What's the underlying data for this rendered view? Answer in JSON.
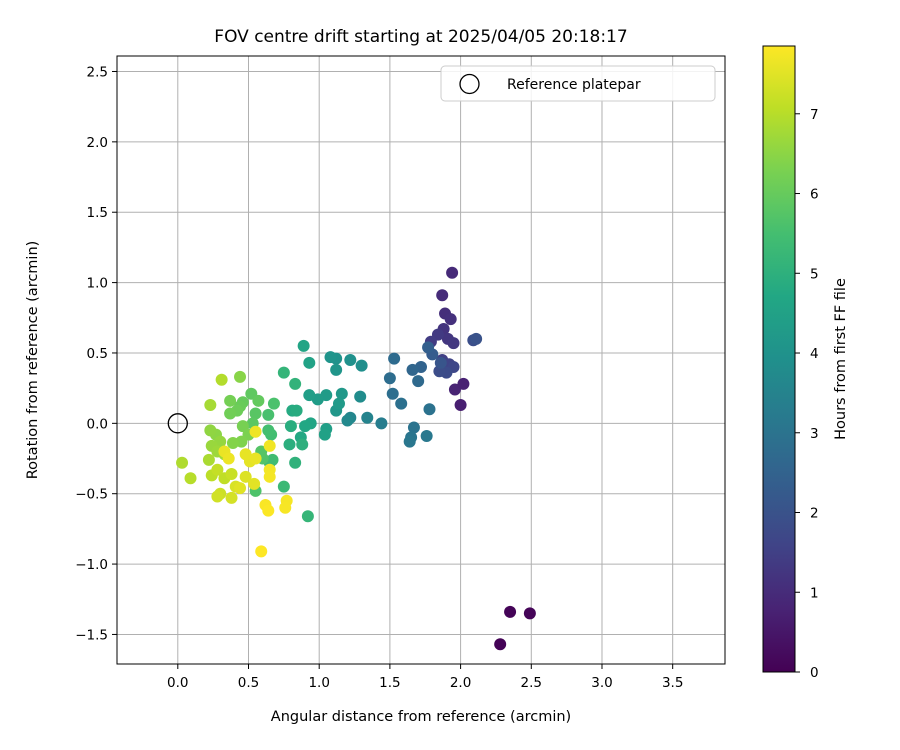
{
  "chart_data": {
    "type": "scatter",
    "title": "FOV centre drift starting at 2025/04/05 20:18:17",
    "xlabel": "Angular distance from reference (arcmin)",
    "ylabel": "Rotation from reference (arcmin)",
    "xlim": [
      -0.43,
      3.87
    ],
    "ylim": [
      -1.71,
      2.61
    ],
    "x_ticks": [
      0.0,
      0.5,
      1.0,
      1.5,
      2.0,
      2.5,
      3.0,
      3.5
    ],
    "x_tick_labels": [
      "0.0",
      "0.5",
      "1.0",
      "1.5",
      "2.0",
      "2.5",
      "3.0",
      "3.5"
    ],
    "y_ticks": [
      -1.5,
      -1.0,
      -0.5,
      0.0,
      0.5,
      1.0,
      1.5,
      2.0,
      2.5
    ],
    "y_tick_labels": [
      "−1.5",
      "−1.0",
      "−0.5",
      "0.0",
      "0.5",
      "1.0",
      "1.5",
      "2.0",
      "2.5"
    ],
    "grid": true,
    "legend": {
      "position": "top-right",
      "entries": [
        "Reference platepar"
      ]
    },
    "reference": {
      "name": "Reference platepar",
      "x": 0.0,
      "y": 0.0
    },
    "colorbar": {
      "label": "Hours from first FF file",
      "min": 0,
      "max": 7.85,
      "colormap": "viridis",
      "ticks": [
        0,
        1,
        2,
        3,
        4,
        5,
        6,
        7
      ],
      "tick_labels": [
        "0",
        "1",
        "2",
        "3",
        "4",
        "5",
        "6",
        "7"
      ]
    },
    "points": [
      {
        "x": 2.28,
        "y": -1.57,
        "t": 0.05
      },
      {
        "x": 2.35,
        "y": -1.34,
        "t": 0.08
      },
      {
        "x": 2.49,
        "y": -1.35,
        "t": 0.1
      },
      {
        "x": 2.0,
        "y": 0.13,
        "t": 0.7
      },
      {
        "x": 1.96,
        "y": 0.24,
        "t": 0.8
      },
      {
        "x": 2.02,
        "y": 0.28,
        "t": 0.75
      },
      {
        "x": 1.94,
        "y": 1.07,
        "t": 0.95
      },
      {
        "x": 1.87,
        "y": 0.91,
        "t": 1.0
      },
      {
        "x": 1.89,
        "y": 0.78,
        "t": 1.05
      },
      {
        "x": 1.93,
        "y": 0.74,
        "t": 1.1
      },
      {
        "x": 1.88,
        "y": 0.67,
        "t": 1.2
      },
      {
        "x": 1.91,
        "y": 0.6,
        "t": 1.25
      },
      {
        "x": 1.95,
        "y": 0.57,
        "t": 1.3
      },
      {
        "x": 1.84,
        "y": 0.63,
        "t": 1.35
      },
      {
        "x": 1.79,
        "y": 0.58,
        "t": 1.4
      },
      {
        "x": 1.87,
        "y": 0.45,
        "t": 1.5
      },
      {
        "x": 1.92,
        "y": 0.42,
        "t": 1.6
      },
      {
        "x": 1.95,
        "y": 0.4,
        "t": 1.7
      },
      {
        "x": 1.9,
        "y": 0.36,
        "t": 1.8
      },
      {
        "x": 1.85,
        "y": 0.37,
        "t": 1.85
      },
      {
        "x": 2.09,
        "y": 0.59,
        "t": 1.9
      },
      {
        "x": 2.11,
        "y": 0.6,
        "t": 2.0
      },
      {
        "x": 1.86,
        "y": 0.43,
        "t": 2.1
      },
      {
        "x": 1.8,
        "y": 0.49,
        "t": 2.3
      },
      {
        "x": 1.77,
        "y": 0.54,
        "t": 2.4
      },
      {
        "x": 1.72,
        "y": 0.4,
        "t": 2.5
      },
      {
        "x": 1.66,
        "y": 0.38,
        "t": 2.6
      },
      {
        "x": 1.7,
        "y": 0.3,
        "t": 2.7
      },
      {
        "x": 1.53,
        "y": 0.46,
        "t": 2.75
      },
      {
        "x": 1.5,
        "y": 0.32,
        "t": 2.8
      },
      {
        "x": 1.52,
        "y": 0.21,
        "t": 2.85
      },
      {
        "x": 1.58,
        "y": 0.14,
        "t": 2.9
      },
      {
        "x": 1.78,
        "y": 0.1,
        "t": 2.95
      },
      {
        "x": 1.67,
        "y": -0.03,
        "t": 3.0
      },
      {
        "x": 1.65,
        "y": -0.1,
        "t": 3.05
      },
      {
        "x": 1.64,
        "y": -0.13,
        "t": 3.1
      },
      {
        "x": 1.76,
        "y": -0.09,
        "t": 3.15
      },
      {
        "x": 1.44,
        "y": 0.0,
        "t": 3.3
      },
      {
        "x": 1.34,
        "y": 0.04,
        "t": 3.5
      },
      {
        "x": 1.22,
        "y": 0.04,
        "t": 3.6
      },
      {
        "x": 1.2,
        "y": 0.02,
        "t": 3.7
      },
      {
        "x": 1.29,
        "y": 0.19,
        "t": 3.8
      },
      {
        "x": 1.3,
        "y": 0.41,
        "t": 3.9
      },
      {
        "x": 1.22,
        "y": 0.45,
        "t": 3.95
      },
      {
        "x": 1.12,
        "y": 0.46,
        "t": 4.0
      },
      {
        "x": 1.08,
        "y": 0.47,
        "t": 4.05
      },
      {
        "x": 1.12,
        "y": 0.38,
        "t": 4.1
      },
      {
        "x": 1.12,
        "y": 0.09,
        "t": 4.15
      },
      {
        "x": 1.16,
        "y": 0.21,
        "t": 4.2
      },
      {
        "x": 1.14,
        "y": 0.14,
        "t": 4.25
      },
      {
        "x": 1.05,
        "y": 0.2,
        "t": 4.3
      },
      {
        "x": 0.99,
        "y": 0.17,
        "t": 4.35
      },
      {
        "x": 0.93,
        "y": 0.2,
        "t": 4.4
      },
      {
        "x": 1.05,
        "y": -0.04,
        "t": 4.45
      },
      {
        "x": 1.04,
        "y": -0.08,
        "t": 4.5
      },
      {
        "x": 0.93,
        "y": 0.43,
        "t": 4.55
      },
      {
        "x": 0.89,
        "y": 0.55,
        "t": 4.6
      },
      {
        "x": 0.94,
        "y": 0.0,
        "t": 4.65
      },
      {
        "x": 0.9,
        "y": -0.02,
        "t": 4.7
      },
      {
        "x": 0.87,
        "y": -0.1,
        "t": 4.75
      },
      {
        "x": 0.81,
        "y": 0.09,
        "t": 4.8
      },
      {
        "x": 0.84,
        "y": 0.09,
        "t": 4.85
      },
      {
        "x": 0.8,
        "y": -0.02,
        "t": 4.9
      },
      {
        "x": 0.79,
        "y": -0.15,
        "t": 4.95
      },
      {
        "x": 0.88,
        "y": -0.15,
        "t": 5.0
      },
      {
        "x": 0.83,
        "y": -0.28,
        "t": 5.05
      },
      {
        "x": 0.83,
        "y": 0.28,
        "t": 5.1
      },
      {
        "x": 0.75,
        "y": 0.36,
        "t": 5.15
      },
      {
        "x": 0.92,
        "y": -0.66,
        "t": 5.2
      },
      {
        "x": 0.75,
        "y": -0.45,
        "t": 5.3
      },
      {
        "x": 0.65,
        "y": -0.28,
        "t": 5.35
      },
      {
        "x": 0.67,
        "y": -0.26,
        "t": 5.4
      },
      {
        "x": 0.66,
        "y": -0.08,
        "t": 5.45
      },
      {
        "x": 0.64,
        "y": -0.05,
        "t": 5.5
      },
      {
        "x": 0.64,
        "y": 0.06,
        "t": 5.55
      },
      {
        "x": 0.68,
        "y": 0.14,
        "t": 5.6
      },
      {
        "x": 0.55,
        "y": -0.48,
        "t": 5.65
      },
      {
        "x": 0.6,
        "y": -0.25,
        "t": 5.7
      },
      {
        "x": 0.59,
        "y": -0.2,
        "t": 5.75
      },
      {
        "x": 0.55,
        "y": 0.07,
        "t": 5.8
      },
      {
        "x": 0.53,
        "y": 0.0,
        "t": 5.85
      },
      {
        "x": 0.52,
        "y": 0.21,
        "t": 5.9
      },
      {
        "x": 0.57,
        "y": 0.16,
        "t": 5.95
      },
      {
        "x": 0.46,
        "y": 0.15,
        "t": 6.0
      },
      {
        "x": 0.44,
        "y": 0.12,
        "t": 6.05
      },
      {
        "x": 0.42,
        "y": 0.09,
        "t": 6.1
      },
      {
        "x": 0.37,
        "y": 0.07,
        "t": 6.15
      },
      {
        "x": 0.37,
        "y": 0.16,
        "t": 6.2
      },
      {
        "x": 0.46,
        "y": -0.02,
        "t": 6.25
      },
      {
        "x": 0.5,
        "y": -0.08,
        "t": 6.3
      },
      {
        "x": 0.45,
        "y": -0.13,
        "t": 6.35
      },
      {
        "x": 0.39,
        "y": -0.14,
        "t": 6.4
      },
      {
        "x": 0.44,
        "y": 0.33,
        "t": 6.45
      },
      {
        "x": 0.27,
        "y": -0.08,
        "t": 6.5
      },
      {
        "x": 0.23,
        "y": -0.05,
        "t": 6.55
      },
      {
        "x": 0.3,
        "y": -0.13,
        "t": 6.6
      },
      {
        "x": 0.24,
        "y": -0.16,
        "t": 6.65
      },
      {
        "x": 0.28,
        "y": -0.2,
        "t": 6.7
      },
      {
        "x": 0.33,
        "y": -0.22,
        "t": 6.75
      },
      {
        "x": 0.23,
        "y": 0.13,
        "t": 6.8
      },
      {
        "x": 0.22,
        "y": -0.26,
        "t": 6.85
      },
      {
        "x": 0.03,
        "y": -0.28,
        "t": 6.9
      },
      {
        "x": 0.31,
        "y": 0.31,
        "t": 6.95
      },
      {
        "x": 0.09,
        "y": -0.39,
        "t": 7.0
      },
      {
        "x": 0.24,
        "y": -0.37,
        "t": 7.05
      },
      {
        "x": 0.33,
        "y": -0.39,
        "t": 7.1
      },
      {
        "x": 0.28,
        "y": -0.33,
        "t": 7.15
      },
      {
        "x": 0.38,
        "y": -0.36,
        "t": 7.2
      },
      {
        "x": 0.3,
        "y": -0.5,
        "t": 7.25
      },
      {
        "x": 0.28,
        "y": -0.52,
        "t": 7.3
      },
      {
        "x": 0.38,
        "y": -0.53,
        "t": 7.35
      },
      {
        "x": 0.41,
        "y": -0.45,
        "t": 7.4
      },
      {
        "x": 0.48,
        "y": -0.38,
        "t": 7.45
      },
      {
        "x": 0.44,
        "y": -0.46,
        "t": 7.5
      },
      {
        "x": 0.54,
        "y": -0.43,
        "t": 7.52
      },
      {
        "x": 0.51,
        "y": -0.27,
        "t": 7.55
      },
      {
        "x": 0.48,
        "y": -0.22,
        "t": 7.58
      },
      {
        "x": 0.55,
        "y": -0.25,
        "t": 7.6
      },
      {
        "x": 0.33,
        "y": -0.2,
        "t": 7.62
      },
      {
        "x": 0.36,
        "y": -0.25,
        "t": 7.65
      },
      {
        "x": 0.55,
        "y": -0.06,
        "t": 7.68
      },
      {
        "x": 0.65,
        "y": -0.16,
        "t": 7.7
      },
      {
        "x": 0.65,
        "y": -0.33,
        "t": 7.72
      },
      {
        "x": 0.65,
        "y": -0.38,
        "t": 7.74
      },
      {
        "x": 0.77,
        "y": -0.55,
        "t": 7.76
      },
      {
        "x": 0.76,
        "y": -0.6,
        "t": 7.78
      },
      {
        "x": 0.62,
        "y": -0.58,
        "t": 7.8
      },
      {
        "x": 0.64,
        "y": -0.62,
        "t": 7.82
      },
      {
        "x": 0.59,
        "y": -0.91,
        "t": 7.85
      }
    ]
  }
}
